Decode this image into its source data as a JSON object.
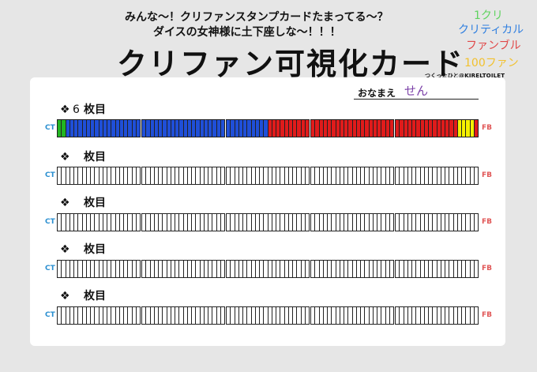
{
  "header": {
    "subtitle_line1": "みんな〜！クリファンスタンプカードたまってる〜？",
    "subtitle_line2": "ダイスの女神様に土下座しな〜！！！",
    "title": "クリファン可視化カード",
    "credit": "つくったひと@KIRELTOILET"
  },
  "legend": [
    {
      "label": "1クリ",
      "color": "#5fd35f"
    },
    {
      "label": "クリティカル",
      "color": "#2f7fe0"
    },
    {
      "label": "ファンブル",
      "color": "#e04848"
    },
    {
      "label": "100ファン",
      "color": "#f2c12e"
    }
  ],
  "card": {
    "name_label": "おなまえ",
    "name_value": "せん",
    "ct_label": "CT",
    "fb_label": "FB",
    "rows": [
      {
        "diamond": "❖",
        "number": "6",
        "suffix": "枚目"
      },
      {
        "diamond": "❖",
        "number": "",
        "suffix": "枚目"
      },
      {
        "diamond": "❖",
        "number": "",
        "suffix": "枚目"
      },
      {
        "diamond": "❖",
        "number": "",
        "suffix": "枚目"
      },
      {
        "diamond": "❖",
        "number": "",
        "suffix": "枚目"
      }
    ]
  },
  "stamps": {
    "green": "#22b522",
    "blue": "#1f4fd8",
    "red": "#e01b1b",
    "yellow": "#f5f000",
    "row1_cells": [
      "g",
      "g",
      "b",
      "b",
      "b",
      "b",
      "b",
      "b",
      "b",
      "b",
      "b",
      "b",
      "b",
      "b",
      "b",
      "b",
      "b",
      "b",
      "b",
      "b",
      "b",
      "b",
      "b",
      "b",
      "b",
      "b",
      "b",
      "b",
      "b",
      "b",
      "b",
      "b",
      "b",
      "b",
      "b",
      "b",
      "b",
      "b",
      "b",
      "b",
      "b",
      "b",
      "b",
      "b",
      "b",
      "b",
      "b",
      "b",
      "b",
      "b",
      "r",
      "r",
      "r",
      "r",
      "r",
      "r",
      "r",
      "r",
      "r",
      "r",
      "r",
      "r",
      "r",
      "r",
      "r",
      "r",
      "r",
      "r",
      "r",
      "r",
      "r",
      "r",
      "r",
      "r",
      "r",
      "r",
      "r",
      "r",
      "r",
      "r",
      "r",
      "r",
      "r",
      "r",
      "r",
      "r",
      "r",
      "r",
      "r",
      "r",
      "r",
      "r",
      "r",
      "r",
      "r",
      "y",
      "y",
      "y",
      "y",
      "r"
    ]
  }
}
